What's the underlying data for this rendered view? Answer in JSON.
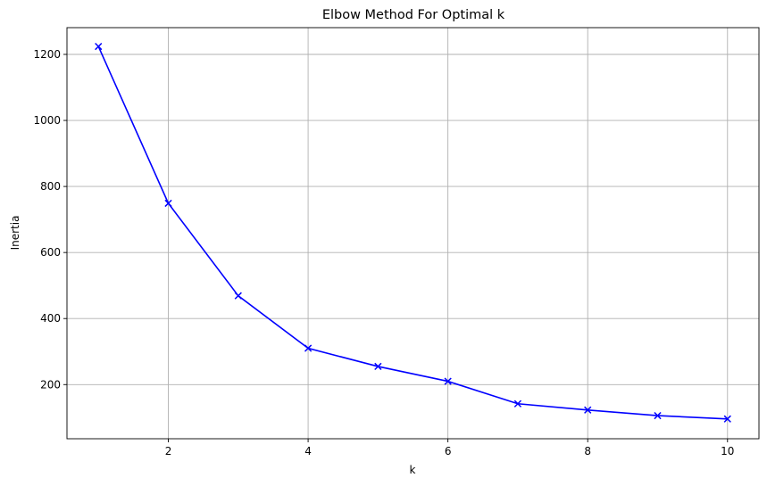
{
  "chart_data": {
    "type": "line",
    "title": "Elbow Method For Optimal k",
    "xlabel": "k",
    "ylabel": "Inertia",
    "xlim": [
      0.55,
      10.45
    ],
    "ylim": [
      36,
      1281
    ],
    "xticks": [
      2,
      4,
      6,
      8,
      10
    ],
    "yticks": [
      200,
      400,
      600,
      800,
      1000,
      1200
    ],
    "grid": true,
    "marker": "x",
    "color": "#0000ff",
    "series": [
      {
        "x": [
          1,
          2,
          3,
          4,
          5,
          6,
          7,
          8,
          9,
          10
        ],
        "values": [
          1224,
          749,
          469,
          310,
          255,
          210,
          142,
          123,
          106,
          96
        ]
      }
    ]
  }
}
